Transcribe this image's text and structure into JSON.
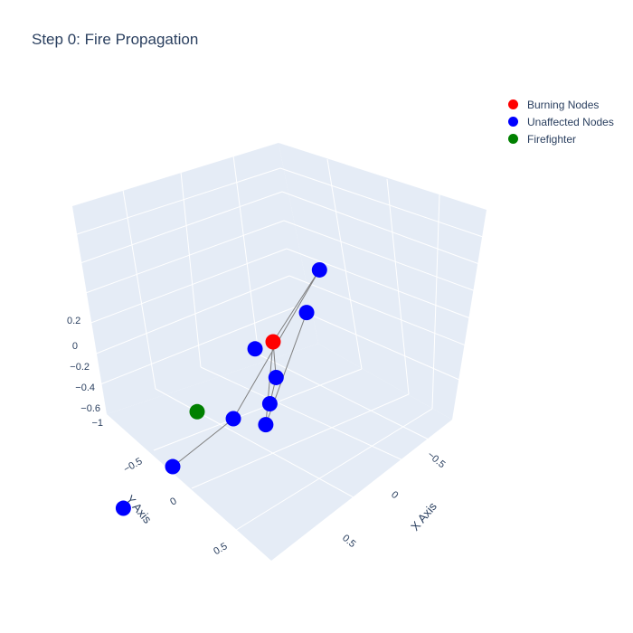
{
  "chart_data": {
    "type": "scatter3d",
    "title": "Step 0: Fire Propagation",
    "xlabel": "X Axis",
    "ylabel": "Y Axis",
    "zlabel": "",
    "x_ticks": [
      "−0.5",
      "0",
      "0.5"
    ],
    "y_ticks": [
      "−0.5",
      "0",
      "0.5"
    ],
    "z_ticks": [
      "−1",
      "−0.6",
      "−0.4",
      "−0.2",
      "0",
      "0.2"
    ],
    "legend_position": "top-right",
    "grid": true,
    "series": [
      {
        "name": "Burning Nodes",
        "color": "#ff0000",
        "points": [
          [
            0,
            0,
            0
          ]
        ]
      },
      {
        "name": "Unaffected Nodes",
        "color": "#0000ff",
        "points": [
          [
            -0.55,
            0.35,
            0.1
          ],
          [
            -1.0,
            0.7,
            0.2
          ],
          [
            -1.4,
            1.0,
            0.3
          ],
          [
            0.15,
            -0.35,
            0.05
          ],
          [
            0.45,
            -0.65,
            0.1
          ],
          [
            0.0,
            0.3,
            -0.35
          ],
          [
            0.3,
            0.55,
            -0.7
          ],
          [
            0.55,
            0.75,
            -1.0
          ],
          [
            0.05,
            0.1,
            -0.05
          ]
        ]
      },
      {
        "name": "Firefighter",
        "color": "#008000",
        "points": [
          [
            -0.2,
            0.7,
            -0.2
          ]
        ]
      }
    ],
    "edges": [
      [
        0,
        1
      ],
      [
        1,
        2
      ],
      [
        0,
        3
      ],
      [
        3,
        4
      ],
      [
        0,
        5
      ],
      [
        5,
        6
      ],
      [
        6,
        7
      ]
    ]
  }
}
